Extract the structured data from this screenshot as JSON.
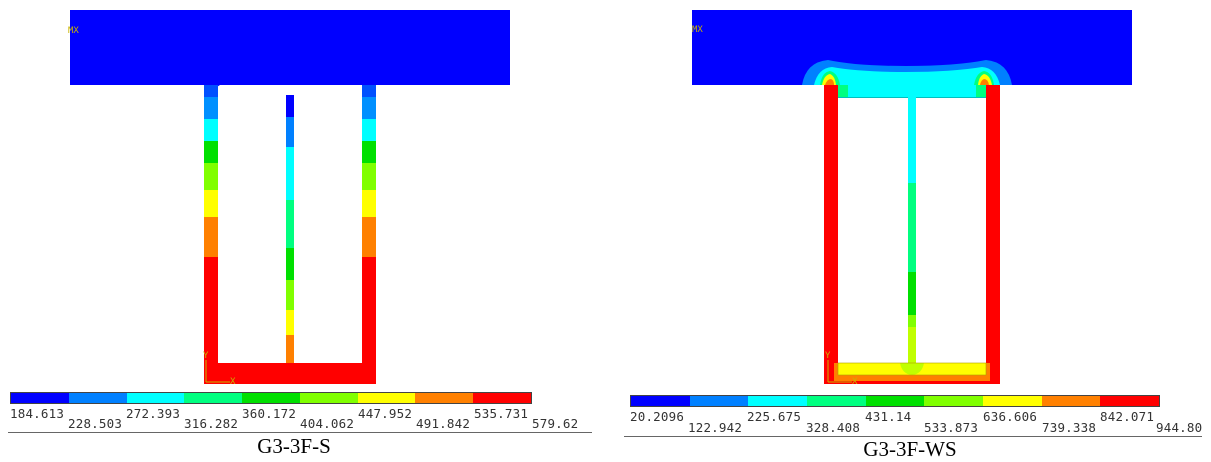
{
  "panels": [
    {
      "caption": "G3-3F-S",
      "legend_values": [
        "184.613",
        "228.503",
        "272.393",
        "316.282",
        "360.172",
        "404.062",
        "447.952",
        "491.842",
        "535.731",
        "579.62"
      ]
    },
    {
      "caption": "G3-3F-WS",
      "legend_values": [
        "20.2096",
        "122.942",
        "225.675",
        "328.408",
        "431.14",
        "533.873",
        "636.606",
        "739.338",
        "842.071",
        "944.80"
      ]
    }
  ],
  "colormap": [
    "#0000ff",
    "#0080ff",
    "#00ffff",
    "#00ff80",
    "#00e000",
    "#80ff00",
    "#ffff00",
    "#ff8000",
    "#ff0000"
  ]
}
